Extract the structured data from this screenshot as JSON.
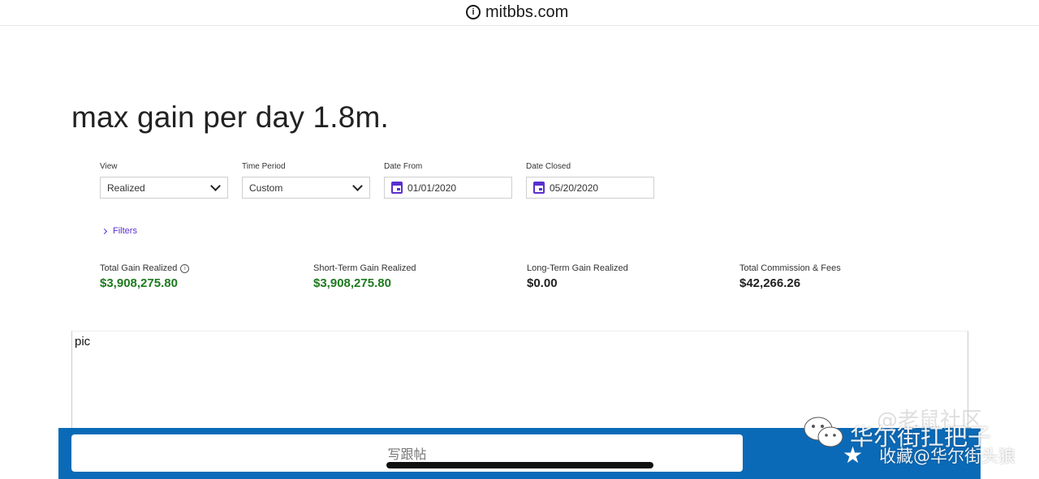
{
  "browser": {
    "url": "mitbbs.com"
  },
  "post": {
    "headline": "max gain per day 1.8m."
  },
  "controls": {
    "view": {
      "label": "View",
      "value": "Realized"
    },
    "time_period": {
      "label": "Time Period",
      "value": "Custom"
    },
    "date_from": {
      "label": "Date From",
      "value": "01/01/2020"
    },
    "date_closed": {
      "label": "Date Closed",
      "value": "05/20/2020"
    },
    "filters_label": "Filters"
  },
  "stats": [
    {
      "label": "Total Gain Realized",
      "value": "$3,908,275.80",
      "color": "#1e7a1e"
    },
    {
      "label": "Short-Term Gain Realized",
      "value": "$3,908,275.80",
      "color": "#1e7a1e"
    },
    {
      "label": "Long-Term Gain Realized",
      "value": "$0.00",
      "color": "#222222"
    },
    {
      "label": "Total Commission & Fees",
      "value": "$42,266.26",
      "color": "#222222"
    }
  ],
  "image_placeholder": "pic",
  "footer": {
    "reply_label": "写跟帖"
  },
  "watermark": {
    "line1": "@老鼠社区",
    "line2": "华尔街扛把子",
    "line3": "收藏@华尔街头狼"
  },
  "icons": [
    "info-icon",
    "chevron-down-icon",
    "calendar-icon",
    "chevron-right-icon",
    "wechat-icon",
    "star-icon"
  ]
}
